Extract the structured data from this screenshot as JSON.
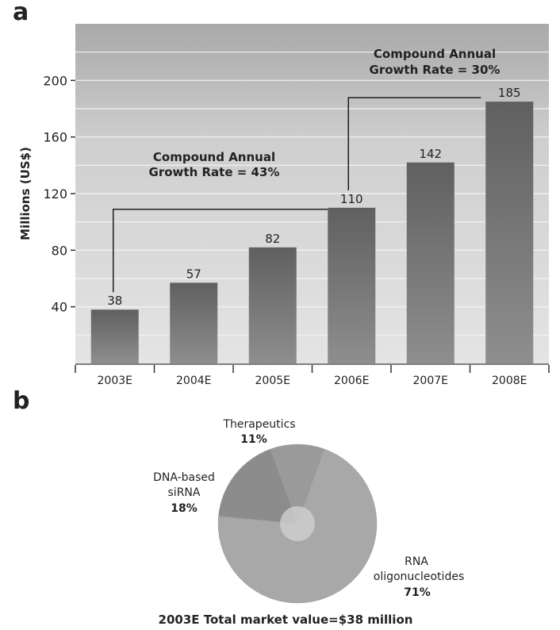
{
  "chart_data": [
    {
      "panel": "a",
      "type": "bar",
      "ylabel": "Millions (US$)",
      "yticks": [
        40,
        80,
        120,
        160,
        200
      ],
      "ylim": [
        0,
        240
      ],
      "categories": [
        "2003E",
        "2004E",
        "2005E",
        "2006E",
        "2007E",
        "2008E"
      ],
      "values": [
        38,
        57,
        82,
        110,
        142,
        185
      ],
      "value_labels": [
        "38",
        "57",
        "82",
        "110",
        "142",
        "185"
      ],
      "annotations": [
        {
          "text_line1": "Compound Annual",
          "text_line2": "Growth Rate = 43%",
          "from_category": "2003E",
          "to_category": "2006E"
        },
        {
          "text_line1": "Compound Annual",
          "text_line2": "Growth Rate = 30%",
          "from_category": "2006E",
          "to_category": "2008E"
        }
      ],
      "colors": {
        "bar": "#7a7a7a",
        "bar_top": "#555555",
        "background": "#d9d9d9",
        "background_top": "#bdbdbd"
      }
    },
    {
      "panel": "b",
      "type": "pie",
      "slices": [
        {
          "label_line1": "RNA",
          "label_line2": "oligonucleotides",
          "percent_label": "71%",
          "value": 71
        },
        {
          "label_line1": "DNA-based",
          "label_line2": "siRNA",
          "percent_label": "18%",
          "value": 18
        },
        {
          "label_line1": "Therapeutics",
          "label_line2": "",
          "percent_label": "11%",
          "value": 11
        }
      ],
      "caption": "2003E Total market value=$38 million",
      "colors": {
        "slice_main": "#a8a8a8",
        "slice_secondary": "#8c8c8c",
        "slice_tertiary": "#9a9a9a",
        "center": "#cfcfcf"
      }
    }
  ],
  "labels": {
    "panel_a": "a",
    "panel_b": "b"
  }
}
